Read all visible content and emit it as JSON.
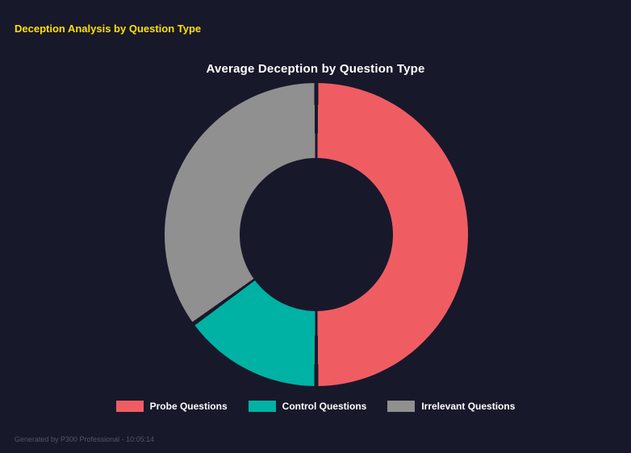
{
  "page": {
    "header": "Deception Analysis by Question Type",
    "footer": "Generated by P300 Professional - 10:05:14",
    "background_color": "#18182b",
    "header_text_color": "#ffe100"
  },
  "chart_data": {
    "type": "pie",
    "subtype": "donut",
    "title": "Average Deception by Question Type",
    "categories": [
      "Probe Questions",
      "Control Questions",
      "Irrelevant Questions"
    ],
    "values": [
      50,
      15,
      35
    ],
    "colors": [
      "#ef5d63",
      "#00b2a3",
      "#909090"
    ],
    "start_angle_deg": 0,
    "direction": "clockwise",
    "hole_ratio": 0.5,
    "legend_position": "bottom",
    "legend_labels": [
      "Probe Questions",
      "Control Questions",
      "Irrelevant Questions"
    ]
  }
}
